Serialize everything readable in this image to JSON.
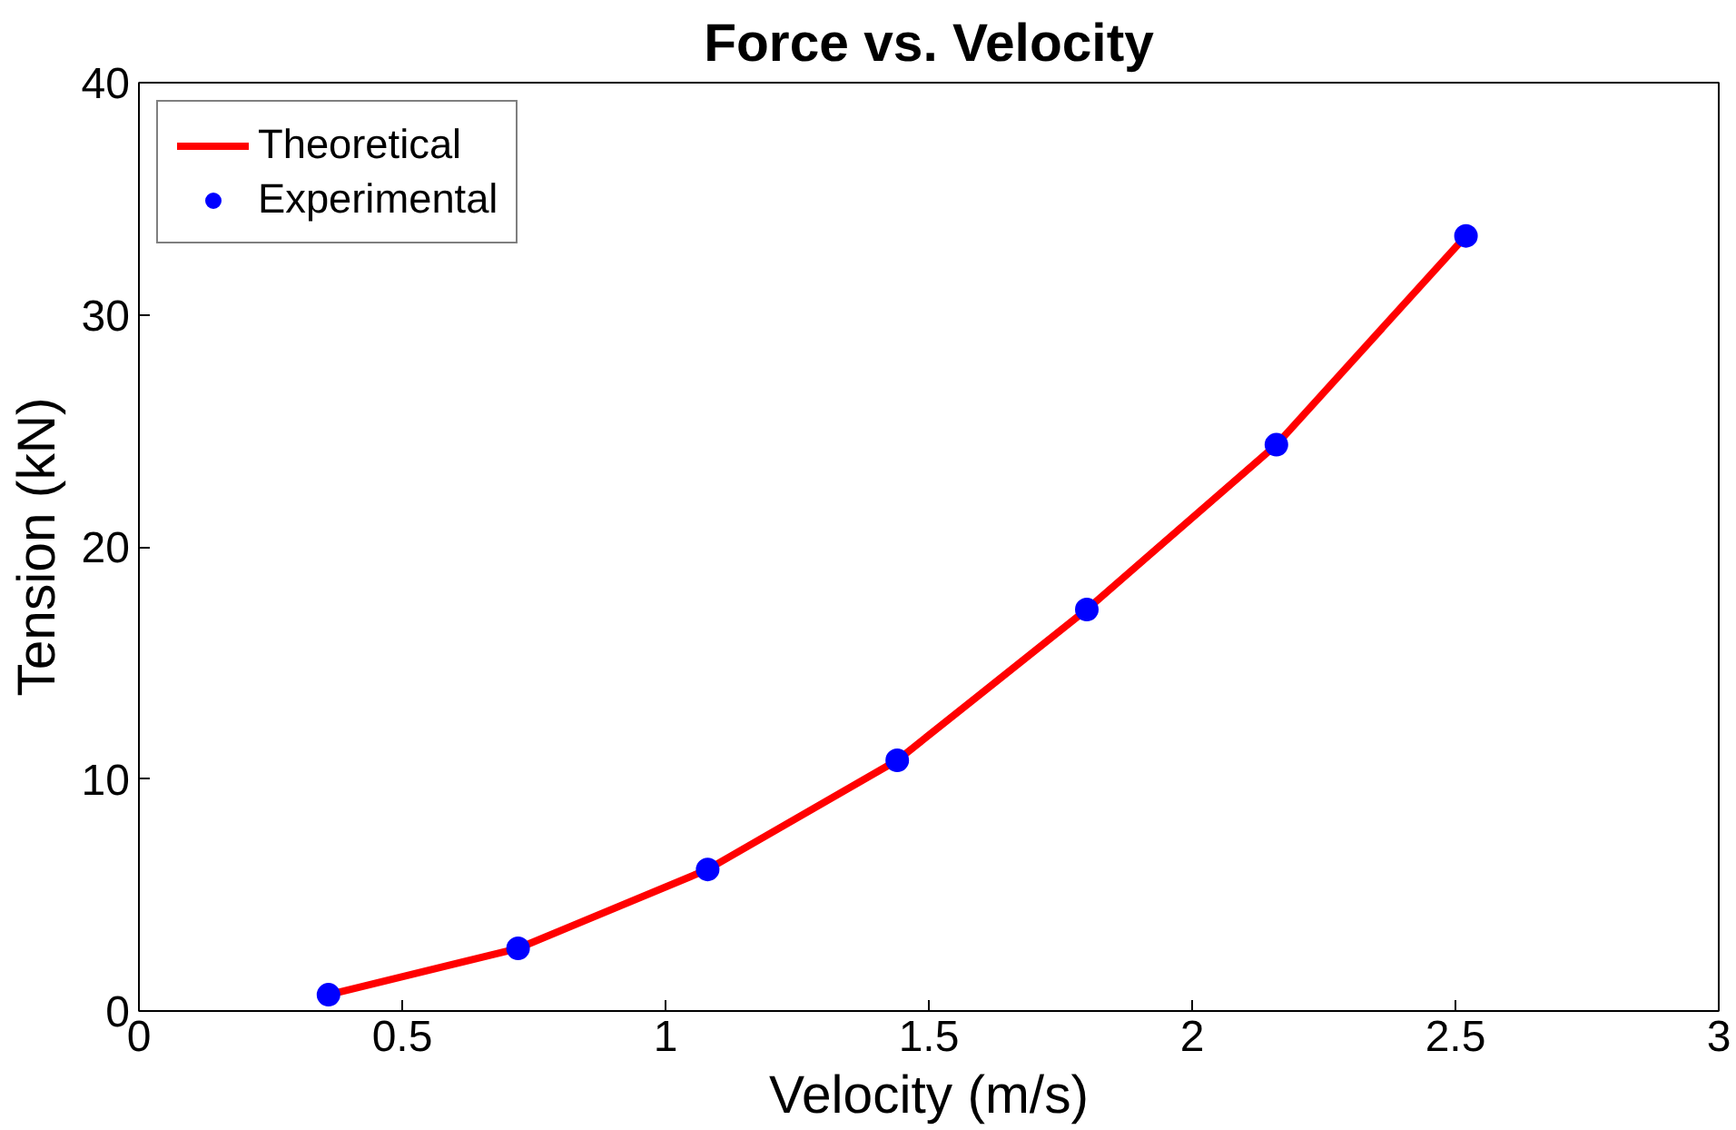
{
  "chart_data": {
    "type": "line",
    "title": "Force vs. Velocity",
    "xlabel": "Velocity (m/s)",
    "ylabel": "Tension (kN)",
    "xlim": [
      0,
      3
    ],
    "ylim": [
      0,
      40
    ],
    "xticks": [
      0,
      0.5,
      1,
      1.5,
      2,
      2.5,
      3
    ],
    "yticks": [
      0,
      10,
      20,
      30,
      40
    ],
    "grid": false,
    "legend": "top left",
    "series": [
      {
        "name": "Theoretical",
        "color": "#ff0000",
        "marker": "none",
        "x": [
          0.36,
          0.72,
          1.08,
          1.44,
          1.8,
          2.16,
          2.52
        ],
        "values": [
          0.7,
          2.7,
          6.1,
          10.8,
          17.3,
          24.4,
          33.4
        ]
      },
      {
        "name": "Experimental",
        "type": "scatter",
        "color": "#0000ff",
        "marker": "circle",
        "x": [
          0.36,
          0.72,
          1.08,
          1.44,
          1.8,
          2.16,
          2.52
        ],
        "values": [
          0.7,
          2.7,
          6.1,
          10.8,
          17.3,
          24.4,
          33.4
        ]
      }
    ]
  }
}
